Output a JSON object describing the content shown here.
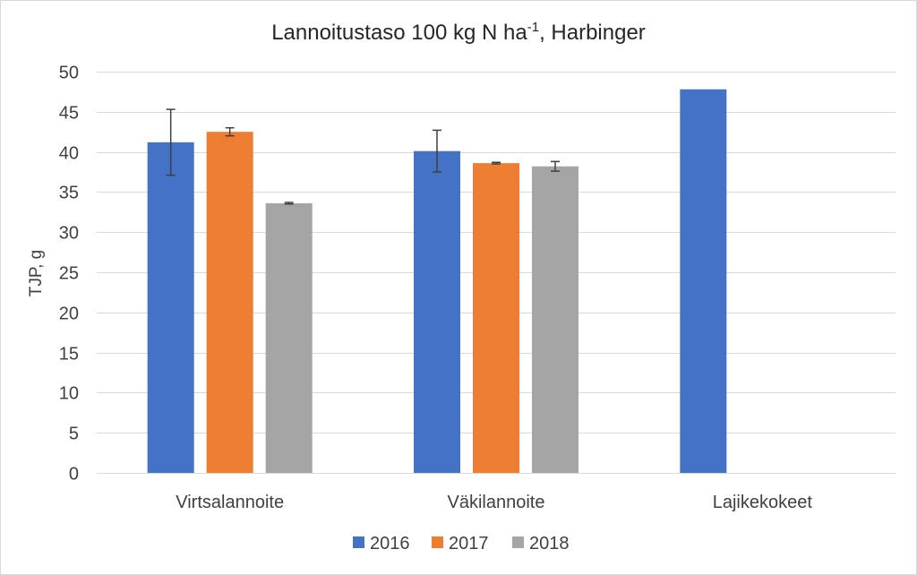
{
  "chart_data": {
    "type": "bar",
    "title": "Lannoitustaso 100 kg N ha",
    "title_superscript": "-1",
    "title_suffix": ", Harbinger",
    "xlabel": "",
    "ylabel": "TJP, g",
    "ylim": [
      0,
      50
    ],
    "yticks": [
      0,
      5,
      10,
      15,
      20,
      25,
      30,
      35,
      40,
      45,
      50
    ],
    "grid": true,
    "legend_position": "bottom",
    "categories": [
      "Virtsalannoite",
      "Väkilannoite",
      "Lajikekokeet"
    ],
    "series": [
      {
        "name": "2016",
        "color": "#4472C4",
        "values": [
          41.2,
          40.1,
          47.8
        ],
        "errors": [
          4.1,
          2.6,
          null
        ]
      },
      {
        "name": "2017",
        "color": "#ED7D31",
        "values": [
          42.5,
          38.6,
          null
        ],
        "errors": [
          0.5,
          0.1,
          null
        ]
      },
      {
        "name": "2018",
        "color": "#A5A5A5",
        "values": [
          33.6,
          38.2,
          null
        ],
        "errors": [
          0.1,
          0.6,
          null
        ]
      }
    ]
  }
}
